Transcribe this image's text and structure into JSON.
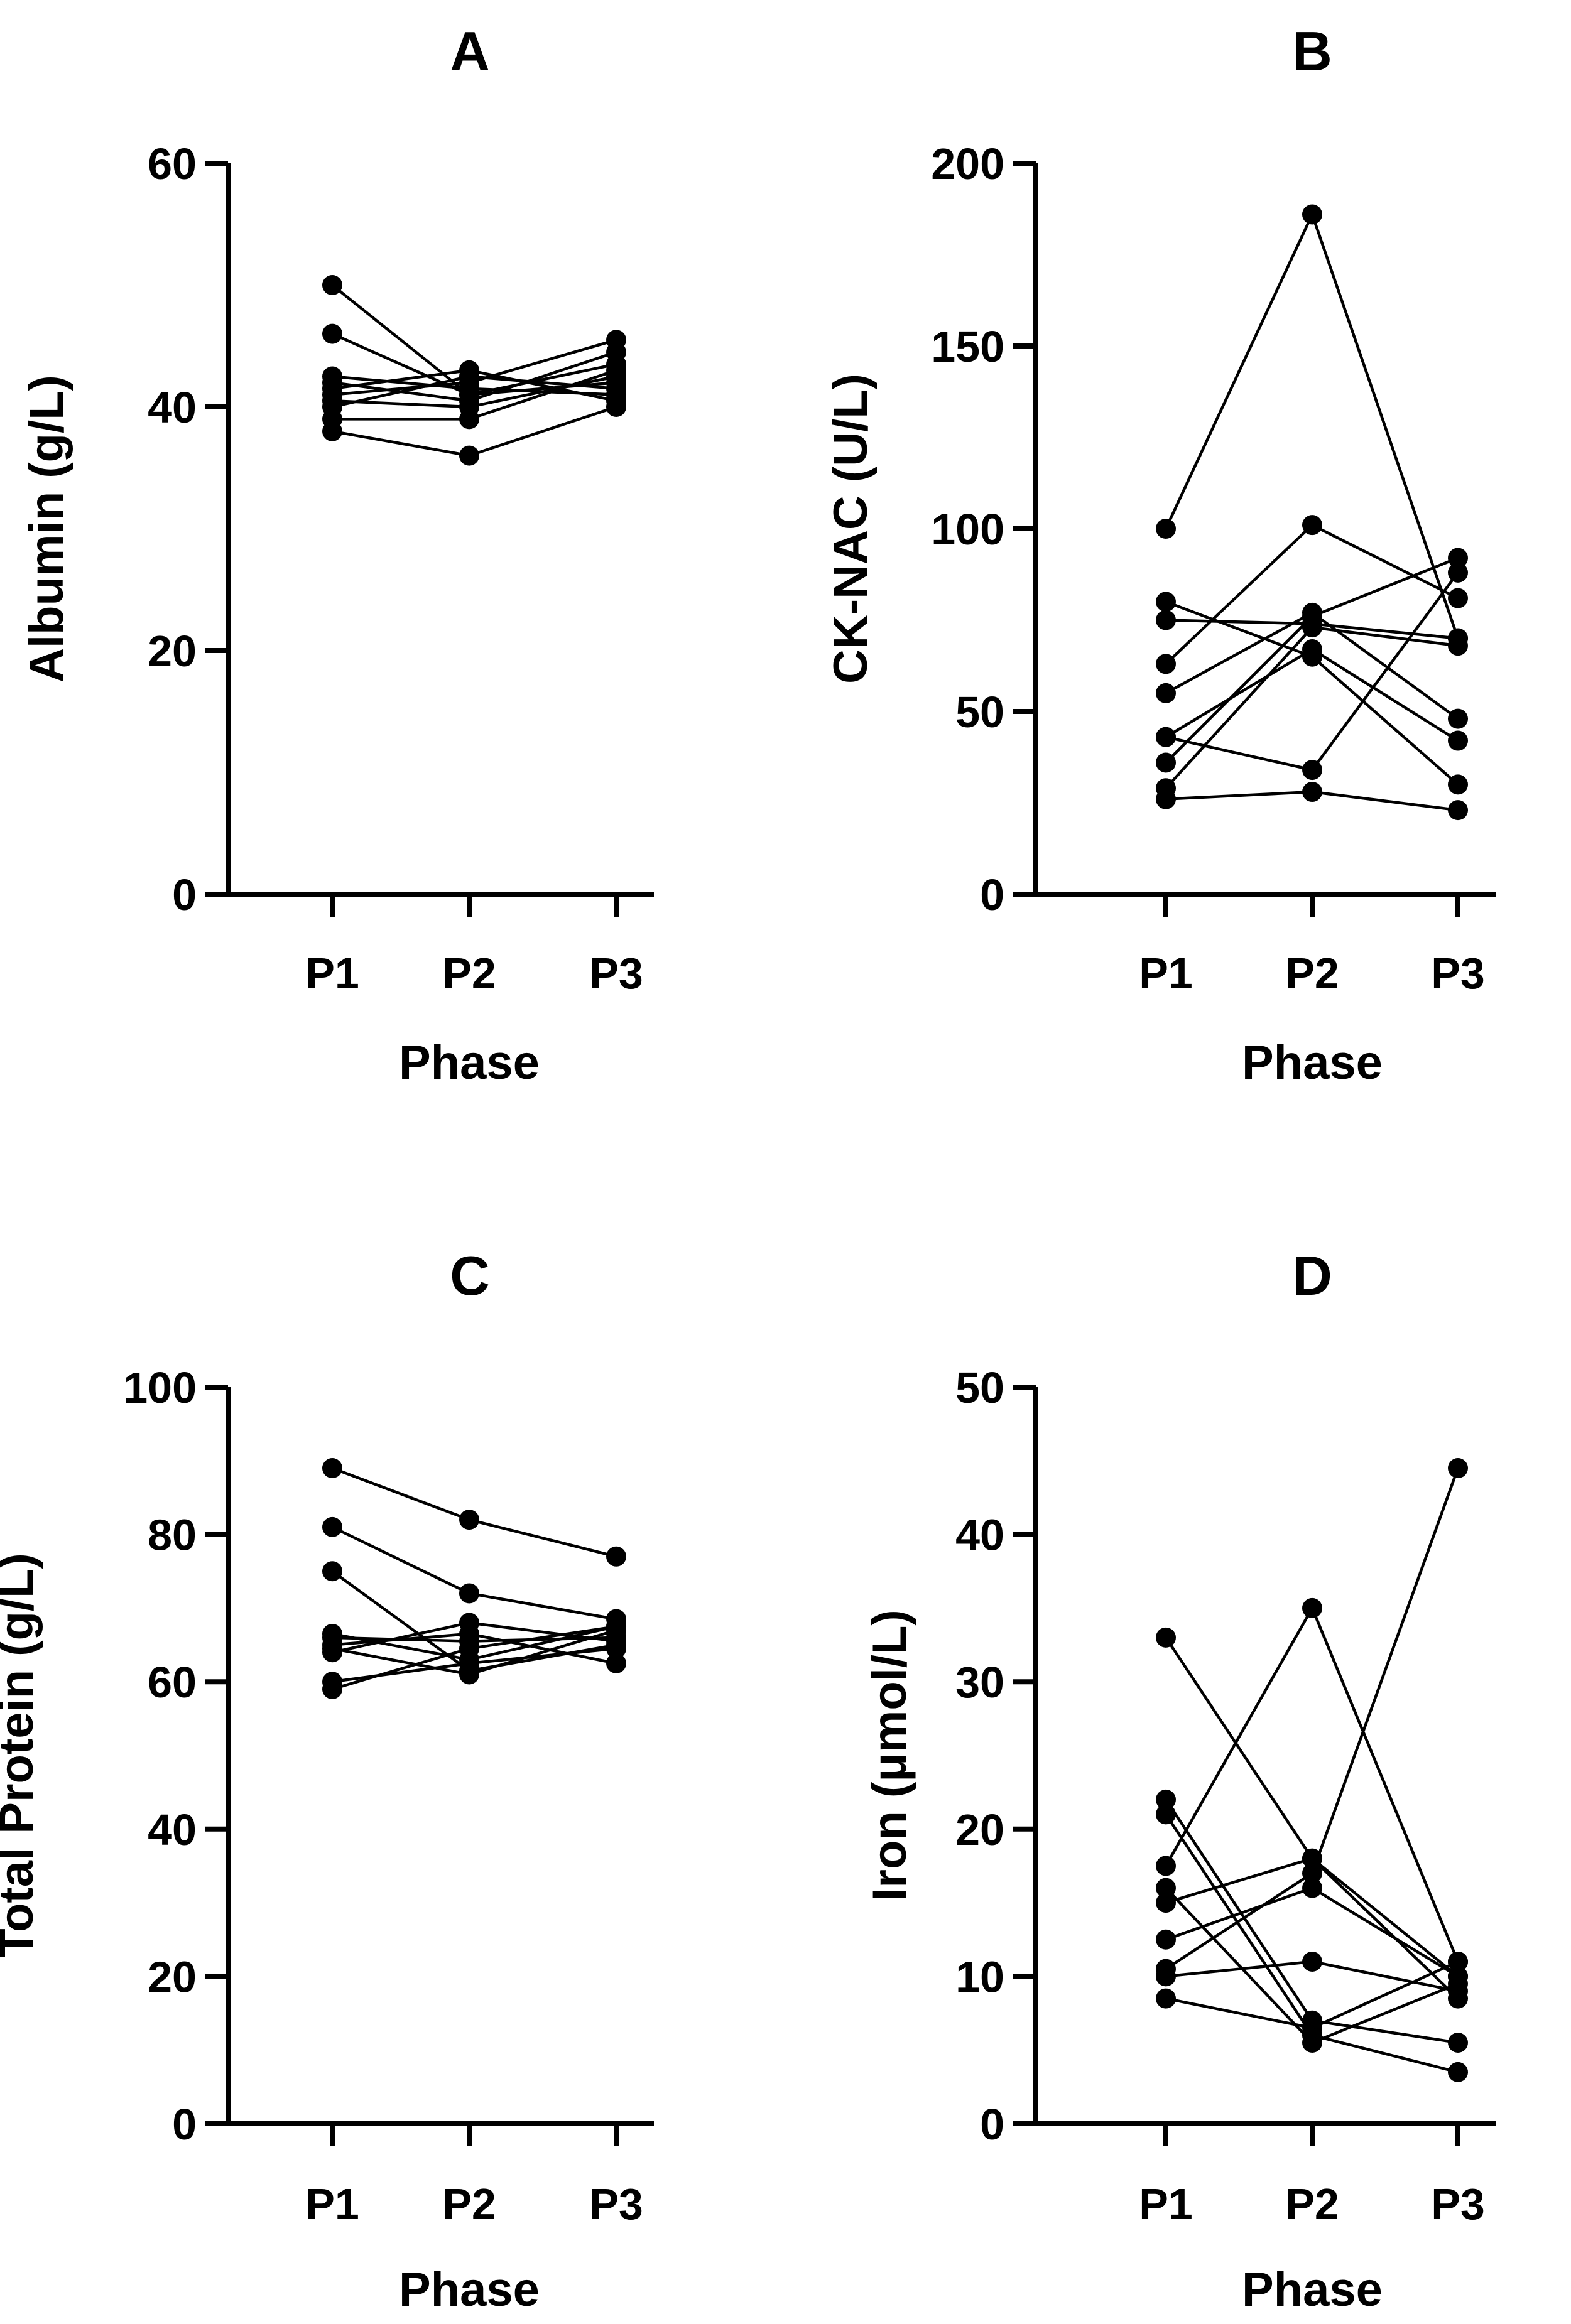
{
  "chart_data": [
    {
      "type": "line",
      "title": "A",
      "xlabel": "Phase",
      "ylabel": "Albumin (g/L)",
      "categories": [
        "P1",
        "P2",
        "P3"
      ],
      "ylim": [
        0,
        60
      ],
      "yticks": [
        0,
        20,
        40,
        60
      ],
      "grid": false,
      "series": [
        {
          "values": [
            50,
            41,
            42
          ]
        },
        {
          "values": [
            46,
            41,
            43.5
          ]
        },
        {
          "values": [
            42.5,
            41.5,
            41
          ]
        },
        {
          "values": [
            42,
            40.5,
            44.5
          ]
        },
        {
          "values": [
            41.5,
            43,
            40.5
          ]
        },
        {
          "values": [
            41,
            42,
            45.5
          ]
        },
        {
          "values": [
            40.5,
            40,
            42.5
          ]
        },
        {
          "values": [
            40,
            42.5,
            41.5
          ]
        },
        {
          "values": [
            39,
            39,
            43
          ]
        },
        {
          "values": [
            38,
            36,
            40
          ]
        }
      ]
    },
    {
      "type": "line",
      "title": "B",
      "xlabel": "Phase",
      "ylabel": "CK-NAC  (U/L)",
      "categories": [
        "P1",
        "P2",
        "P3"
      ],
      "ylim": [
        0,
        200
      ],
      "yticks": [
        0,
        50,
        100,
        150,
        200
      ],
      "grid": false,
      "series": [
        {
          "values": [
            100,
            186,
            70
          ]
        },
        {
          "values": [
            80,
            65,
            30
          ]
        },
        {
          "values": [
            75,
            74,
            70
          ]
        },
        {
          "values": [
            63,
            101,
            81
          ]
        },
        {
          "values": [
            55,
            77,
            48
          ]
        },
        {
          "values": [
            43,
            34,
            88
          ]
        },
        {
          "values": [
            43,
            67,
            42
          ]
        },
        {
          "values": [
            36,
            76,
            92
          ]
        },
        {
          "values": [
            29,
            73,
            68
          ]
        },
        {
          "values": [
            26,
            28,
            23
          ]
        }
      ]
    },
    {
      "type": "line",
      "title": "C",
      "xlabel": "Phase",
      "ylabel": "Total Protein (g/L)",
      "categories": [
        "P1",
        "P2",
        "P3"
      ],
      "ylim": [
        0,
        100
      ],
      "yticks": [
        0,
        20,
        40,
        60,
        80,
        100
      ],
      "grid": false,
      "series": [
        {
          "values": [
            89,
            82,
            77
          ]
        },
        {
          "values": [
            81,
            72,
            68.5
          ]
        },
        {
          "values": [
            75,
            61.5,
            65
          ]
        },
        {
          "values": [
            66.5,
            63,
            67.5
          ]
        },
        {
          "values": [
            66,
            65.5,
            66
          ]
        },
        {
          "values": [
            65,
            66.5,
            62.5
          ]
        },
        {
          "values": [
            64.5,
            61,
            67
          ]
        },
        {
          "values": [
            64,
            68,
            65.5
          ]
        },
        {
          "values": [
            60,
            62.5,
            64.5
          ]
        },
        {
          "values": [
            59,
            64.5,
            67.5
          ]
        }
      ]
    },
    {
      "type": "line",
      "title": "D",
      "xlabel": "Phase",
      "ylabel": "Iron (μmol/L)",
      "categories": [
        "P1",
        "P2",
        "P3"
      ],
      "ylim": [
        0,
        50
      ],
      "yticks": [
        0,
        10,
        20,
        30,
        40,
        50
      ],
      "grid": false,
      "series": [
        {
          "values": [
            33,
            18,
            10
          ]
        },
        {
          "values": [
            22,
            7,
            5.5
          ]
        },
        {
          "values": [
            21,
            6,
            3.5
          ]
        },
        {
          "values": [
            17.5,
            35,
            11
          ]
        },
        {
          "values": [
            16,
            5.5,
            9.5
          ]
        },
        {
          "values": [
            15,
            18,
            8.5
          ]
        },
        {
          "values": [
            12.5,
            16,
            10
          ]
        },
        {
          "values": [
            10.5,
            17,
            44.5
          ]
        },
        {
          "values": [
            10,
            11,
            9
          ]
        },
        {
          "values": [
            8.5,
            6.5,
            11
          ]
        }
      ]
    }
  ]
}
